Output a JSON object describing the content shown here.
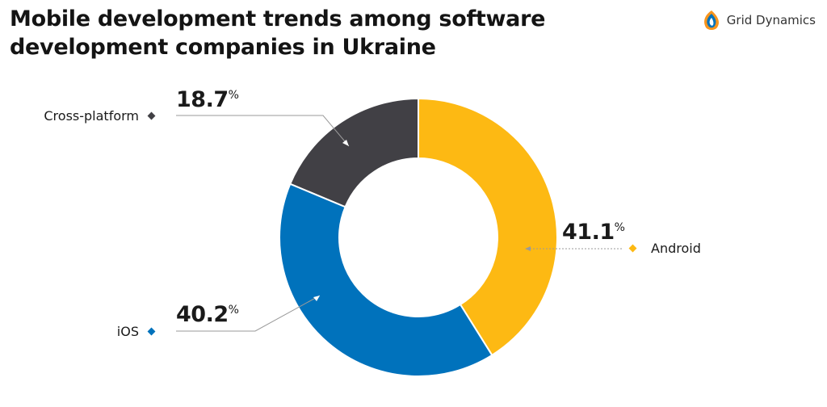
{
  "header": {
    "title": "Mobile development trends among software development companies in Ukraine",
    "brand": "Grid Dynamics"
  },
  "chart_data": {
    "type": "pie",
    "title": "Mobile development trends among software development companies in Ukraine",
    "value_suffix": "%",
    "series": [
      {
        "name": "Android",
        "value": 41.1,
        "label": "41.1",
        "color": "#fdb913"
      },
      {
        "name": "iOS",
        "value": 40.2,
        "label": "40.2",
        "color": "#0072bc"
      },
      {
        "name": "Cross-platform",
        "value": 18.7,
        "label": "18.7",
        "color": "#414045"
      }
    ]
  }
}
